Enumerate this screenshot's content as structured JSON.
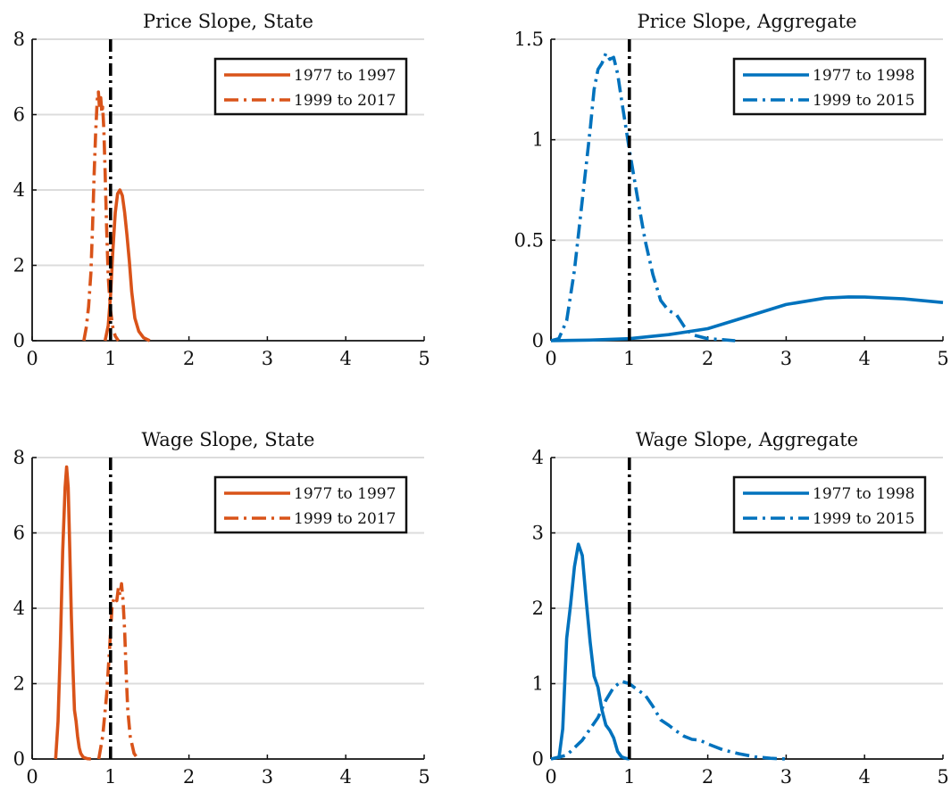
{
  "chart_data": [
    {
      "type": "line",
      "title": "Price Slope, State",
      "xlim": [
        0,
        5
      ],
      "ylim": [
        0,
        8
      ],
      "xticks": [
        0,
        1,
        2,
        3,
        4,
        5
      ],
      "yticks": [
        0,
        2,
        4,
        6,
        8
      ],
      "grid": "horizontal",
      "reference_line_x": 1,
      "legend_position": "top-right",
      "color": "#d95319",
      "series": [
        {
          "name": "1977 to 1997",
          "style": "solid",
          "x": [
            0.93,
            0.97,
            1.0,
            1.03,
            1.06,
            1.09,
            1.12,
            1.15,
            1.18,
            1.21,
            1.24,
            1.27,
            1.31,
            1.36,
            1.42,
            1.5
          ],
          "y": [
            0,
            0.4,
            1.2,
            2.4,
            3.4,
            3.9,
            4.0,
            3.85,
            3.4,
            2.8,
            2.1,
            1.3,
            0.6,
            0.25,
            0.08,
            0
          ]
        },
        {
          "name": "1999 to 2017",
          "style": "dashdot",
          "x": [
            0.66,
            0.69,
            0.72,
            0.75,
            0.77,
            0.79,
            0.81,
            0.83,
            0.845,
            0.86,
            0.875,
            0.89,
            0.9,
            0.915,
            0.93,
            0.95,
            0.97,
            1.0,
            1.03,
            1.06,
            1.1
          ],
          "y": [
            0,
            0.35,
            0.9,
            1.8,
            3.0,
            4.4,
            5.5,
            6.4,
            6.6,
            6.15,
            6.45,
            6.05,
            6.2,
            5.6,
            4.5,
            3.0,
            1.7,
            0.8,
            0.35,
            0.12,
            0
          ]
        }
      ]
    },
    {
      "type": "line",
      "title": "Price Slope, Aggregate",
      "xlim": [
        0,
        5
      ],
      "ylim": [
        0,
        1.5
      ],
      "xticks": [
        0,
        1,
        2,
        3,
        4,
        5
      ],
      "yticks": [
        0,
        0.5,
        1,
        1.5
      ],
      "grid": "horizontal",
      "reference_line_x": 1,
      "legend_position": "top-right",
      "color": "#0072bd",
      "series": [
        {
          "name": "1977 to 1998",
          "style": "solid",
          "x": [
            0,
            0.5,
            1.0,
            1.5,
            2.0,
            2.5,
            3.0,
            3.5,
            3.8,
            4.0,
            4.5,
            5.0
          ],
          "y": [
            0,
            0.003,
            0.01,
            0.03,
            0.06,
            0.12,
            0.18,
            0.212,
            0.218,
            0.217,
            0.208,
            0.19
          ]
        },
        {
          "name": "1999 to 2015",
          "style": "dashdot",
          "x": [
            0,
            0.1,
            0.2,
            0.3,
            0.4,
            0.5,
            0.55,
            0.6,
            0.65,
            0.7,
            0.75,
            0.8,
            0.85,
            0.9,
            1.0,
            1.1,
            1.2,
            1.3,
            1.4,
            1.5,
            1.6,
            1.7,
            1.8,
            1.9,
            2.0,
            2.2,
            2.35
          ],
          "y": [
            0,
            0.01,
            0.1,
            0.35,
            0.7,
            1.05,
            1.25,
            1.35,
            1.38,
            1.43,
            1.4,
            1.41,
            1.33,
            1.2,
            0.95,
            0.72,
            0.5,
            0.33,
            0.2,
            0.15,
            0.13,
            0.07,
            0.03,
            0.02,
            0.01,
            0.005,
            0
          ]
        }
      ]
    },
    {
      "type": "line",
      "title": "Wage Slope, State",
      "xlim": [
        0,
        5
      ],
      "ylim": [
        0,
        8
      ],
      "xticks": [
        0,
        1,
        2,
        3,
        4,
        5
      ],
      "yticks": [
        0,
        2,
        4,
        6,
        8
      ],
      "grid": "horizontal",
      "reference_line_x": 1,
      "legend_position": "top-right",
      "color": "#d95319",
      "series": [
        {
          "name": "1977 to 1997",
          "style": "solid",
          "x": [
            0.3,
            0.33,
            0.36,
            0.39,
            0.42,
            0.44,
            0.46,
            0.48,
            0.5,
            0.52,
            0.54,
            0.56,
            0.58,
            0.6,
            0.62,
            0.65,
            0.7,
            0.75
          ],
          "y": [
            0,
            1.0,
            3.0,
            5.5,
            7.2,
            7.75,
            7.2,
            5.6,
            3.8,
            2.4,
            1.3,
            1.0,
            0.6,
            0.3,
            0.15,
            0.05,
            0.01,
            0
          ]
        },
        {
          "name": "1999 to 2017",
          "style": "dashdot",
          "x": [
            0.85,
            0.9,
            0.95,
            0.99,
            1.02,
            1.05,
            1.08,
            1.1,
            1.12,
            1.14,
            1.16,
            1.18,
            1.2,
            1.22,
            1.25,
            1.3,
            1.35
          ],
          "y": [
            0,
            0.6,
            1.7,
            3.0,
            4.1,
            4.3,
            4.2,
            4.55,
            4.35,
            4.65,
            4.2,
            3.4,
            2.2,
            1.3,
            0.6,
            0.15,
            0
          ]
        }
      ]
    },
    {
      "type": "line",
      "title": "Wage Slope, Aggregate",
      "xlim": [
        0,
        5
      ],
      "ylim": [
        0,
        4
      ],
      "xticks": [
        0,
        1,
        2,
        3,
        4,
        5
      ],
      "yticks": [
        0,
        1,
        2,
        3,
        4
      ],
      "grid": "horizontal",
      "reference_line_x": 1,
      "legend_position": "top-right",
      "color": "#0072bd",
      "series": [
        {
          "name": "1977 to 1998",
          "style": "solid",
          "x": [
            0.1,
            0.15,
            0.2,
            0.25,
            0.3,
            0.35,
            0.4,
            0.45,
            0.5,
            0.55,
            0.6,
            0.65,
            0.7,
            0.75,
            0.8,
            0.85,
            0.9,
            0.95,
            1.0
          ],
          "y": [
            0,
            0.4,
            1.6,
            2.05,
            2.55,
            2.85,
            2.7,
            2.1,
            1.55,
            1.1,
            0.95,
            0.65,
            0.45,
            0.38,
            0.28,
            0.1,
            0.03,
            0.01,
            0
          ]
        },
        {
          "name": "1999 to 2015",
          "style": "dashdot",
          "x": [
            0,
            0.2,
            0.4,
            0.6,
            0.7,
            0.8,
            0.9,
            1.0,
            1.1,
            1.2,
            1.3,
            1.4,
            1.5,
            1.6,
            1.7,
            1.8,
            1.9,
            2.0,
            2.2,
            2.4,
            2.6,
            2.8,
            3.0
          ],
          "y": [
            0,
            0.05,
            0.25,
            0.55,
            0.78,
            0.95,
            1.03,
            1.0,
            0.92,
            0.85,
            0.7,
            0.52,
            0.45,
            0.37,
            0.3,
            0.26,
            0.25,
            0.2,
            0.12,
            0.07,
            0.03,
            0.01,
            0
          ]
        }
      ]
    }
  ]
}
